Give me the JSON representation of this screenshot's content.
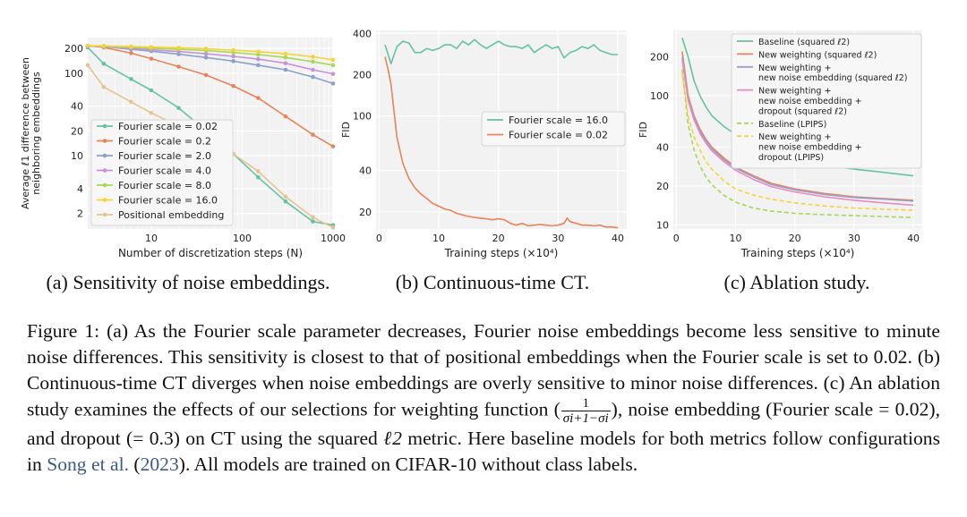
{
  "chart_data": [
    {
      "type": "line",
      "xscale": "log",
      "yscale": "log",
      "xlabel": "Number of discretization steps (N)",
      "ylabel_lines": [
        "Average ℓ1 difference between",
        "neighboring embeddings"
      ],
      "xlim": [
        2,
        1000
      ],
      "ylim": [
        1.3,
        270
      ],
      "xticks": [
        10,
        100,
        1000
      ],
      "xtick_labels": [
        "10",
        "100",
        "1000"
      ],
      "yticks": [
        2,
        4,
        10,
        20,
        40,
        100,
        200
      ],
      "ytick_labels": [
        "2",
        "4",
        "10",
        "20",
        "40",
        "100",
        "200"
      ],
      "grid": true,
      "legend_position": "lower-left",
      "x": [
        2,
        3,
        6,
        10,
        20,
        40,
        80,
        150,
        300,
        600,
        1000
      ],
      "series": [
        {
          "name": "Fourier scale = 0.02",
          "color": "#66c2a5",
          "values": [
            205,
            130,
            85,
            62,
            38,
            20,
            10.5,
            5.5,
            2.8,
            1.6,
            1.45
          ]
        },
        {
          "name": "Fourier scale = 0.2",
          "color": "#e7845b",
          "values": [
            215,
            205,
            175,
            150,
            120,
            95,
            70,
            50,
            30,
            18,
            13
          ]
        },
        {
          "name": "Fourier scale = 2.0",
          "color": "#8da0cb",
          "values": [
            215,
            210,
            195,
            185,
            170,
            155,
            140,
            125,
            110,
            90,
            75
          ]
        },
        {
          "name": "Fourier scale = 4.0",
          "color": "#c792d8",
          "values": [
            215,
            210,
            200,
            192,
            183,
            172,
            160,
            148,
            132,
            110,
            98
          ]
        },
        {
          "name": "Fourier scale = 8.0",
          "color": "#a6d854",
          "values": [
            215,
            212,
            205,
            200,
            195,
            188,
            178,
            168,
            155,
            138,
            125
          ]
        },
        {
          "name": "Fourier scale = 16.0",
          "color": "#f5d33b",
          "values": [
            215,
            214,
            210,
            207,
            203,
            198,
            190,
            182,
            172,
            158,
            145
          ]
        },
        {
          "name": "Positional embedding",
          "color": "#e5c494",
          "values": [
            125,
            68,
            45,
            33,
            23,
            16,
            10.5,
            6.5,
            3.2,
            1.8,
            1.35
          ]
        }
      ]
    },
    {
      "type": "line",
      "yscale": "log",
      "xlabel": "Training steps (×10⁴)",
      "ylabel": "FID",
      "xlim": [
        -0.5,
        41.5
      ],
      "ylim": [
        15,
        420
      ],
      "xticks": [
        0,
        10,
        20,
        30,
        40
      ],
      "xtick_labels": [
        "0",
        "10",
        "20",
        "30",
        "40"
      ],
      "yticks": [
        20,
        40,
        100,
        200,
        400
      ],
      "ytick_labels": [
        "20",
        "40",
        "100",
        "200",
        "400"
      ],
      "grid": true,
      "legend_position": "center-right",
      "series": [
        {
          "name": "Fourier scale = 16.0",
          "color": "#66c2a5",
          "x": [
            1,
            2,
            3,
            4,
            5,
            6,
            7,
            8,
            9,
            10,
            11,
            12,
            13,
            14,
            15,
            16,
            17,
            18,
            19,
            20,
            21,
            22,
            23,
            24,
            25,
            26,
            27,
            28,
            29,
            30,
            31,
            32,
            33,
            34,
            35,
            36,
            37,
            38,
            39,
            40
          ],
          "values": [
            330,
            240,
            320,
            350,
            340,
            290,
            290,
            310,
            300,
            310,
            330,
            330,
            310,
            350,
            330,
            360,
            330,
            310,
            330,
            350,
            330,
            320,
            320,
            310,
            330,
            290,
            310,
            330,
            310,
            320,
            265,
            290,
            300,
            320,
            310,
            330,
            300,
            290,
            280,
            280
          ]
        },
        {
          "name": "Fourier scale = 0.02",
          "color": "#e7845b",
          "x": [
            1,
            1.5,
            2,
            3,
            4,
            5,
            6,
            7,
            8,
            9,
            10,
            11,
            12,
            13,
            14,
            15,
            16,
            17,
            18,
            19,
            20,
            21,
            22,
            23,
            24,
            25,
            26,
            27,
            28,
            29,
            30,
            31,
            31.5,
            32,
            33,
            34,
            35,
            36,
            37,
            38,
            39,
            40
          ],
          "values": [
            270,
            220,
            170,
            70,
            45,
            35,
            30,
            27,
            25,
            23,
            22,
            21,
            20.5,
            19.5,
            19,
            18.5,
            18.2,
            18,
            17.8,
            17.5,
            17.8,
            17.5,
            16.5,
            16,
            16.5,
            15.8,
            16,
            16.2,
            16,
            15.8,
            16,
            16.5,
            18,
            17,
            16.5,
            16,
            16,
            15.8,
            16,
            15.5,
            15.5,
            15.3
          ]
        }
      ]
    },
    {
      "type": "line",
      "yscale": "log",
      "xlabel": "Training steps (×10⁴)",
      "ylabel": "FID",
      "xlim": [
        -0.5,
        41.5
      ],
      "ylim": [
        9.3,
        320
      ],
      "xticks": [
        0,
        10,
        20,
        30,
        40
      ],
      "xtick_labels": [
        "0",
        "10",
        "20",
        "30",
        "40"
      ],
      "yticks": [
        10,
        20,
        40,
        100,
        200
      ],
      "ytick_labels": [
        "10",
        "20",
        "40",
        "100",
        "200"
      ],
      "grid": true,
      "legend_position": "top-right",
      "x": [
        1,
        2,
        3,
        4,
        5,
        6,
        8,
        10,
        13,
        16,
        20,
        25,
        30,
        35,
        40
      ],
      "series": [
        {
          "name": "Baseline (squared ℓ2)",
          "color": "#66c2a5",
          "dash": false,
          "values": [
            280,
            200,
            130,
            100,
            82,
            70,
            58,
            50,
            42,
            37,
            32,
            29,
            27,
            25.5,
            24
          ]
        },
        {
          "name": "New weighting (squared ℓ2)",
          "color": "#e7845b",
          "dash": false,
          "values": [
            220,
            100,
            70,
            55,
            46,
            40,
            33,
            28,
            24,
            21,
            19,
            17.5,
            16.5,
            16,
            15.5
          ]
        },
        {
          "name": "New weighting + new noise embedding (squared ℓ2)",
          "color": "#9a9fc5",
          "dash": false,
          "values": [
            200,
            95,
            68,
            53,
            45,
            39,
            32,
            27.5,
            23.5,
            20.5,
            18.7,
            17.2,
            16.3,
            15.8,
            15.3
          ]
        },
        {
          "name": "New weighting + new noise embedding + dropout (squared ℓ2)",
          "color": "#e78ac3",
          "dash": false,
          "values": [
            190,
            92,
            65,
            51,
            43,
            37.5,
            31,
            26.5,
            22.5,
            19.8,
            18,
            16.5,
            15.5,
            14.8,
            14.2
          ]
        },
        {
          "name": "Baseline (LPIPS)",
          "color": "#a6d854",
          "dash": true,
          "values": [
            160,
            60,
            38,
            28.5,
            23.5,
            20.5,
            17,
            15,
            13.5,
            12.8,
            12.3,
            12,
            11.8,
            11.6,
            11.4
          ]
        },
        {
          "name": "New weighting + new noise embedding + dropout (LPIPS)",
          "color": "#f5d33b",
          "dash": true,
          "values": [
            150,
            70,
            48,
            38,
            31,
            27,
            22,
            19,
            17,
            15.8,
            14.8,
            14,
            13.5,
            13.2,
            13
          ]
        }
      ]
    }
  ],
  "subcaptions": {
    "a": "(a) Sensitivity of noise embeddings.",
    "b": "(b) Continuous-time CT.",
    "c": "(c) Ablation study."
  },
  "caption": {
    "p1": "Figure 1: (a) As the Fourier scale parameter decreases, Fourier noise embeddings become less sensitive to minute noise differences. This sensitivity is closest to that of positional embeddings when the Fourier scale is set to 0.02. (b) Continuous-time CT diverges when noise embeddings are overly sensitive to minor noise differences. (c) An ablation study examines the effects of our selections for weighting function (",
    "frac_num": "1",
    "frac_den": "σi+1−σi",
    "p2": "), noise embedding (Fourier scale = 0.02), and dropout (= 0.3) on CT using the squared ",
    "metric": "ℓ2",
    "p3": " metric. Here baseline models for both metrics follow configurations in ",
    "cite_name": "Song et al.",
    "cite_pre": " (",
    "cite_year": "2023",
    "p4": "). All models are trained on CIFAR-10 without class labels."
  }
}
